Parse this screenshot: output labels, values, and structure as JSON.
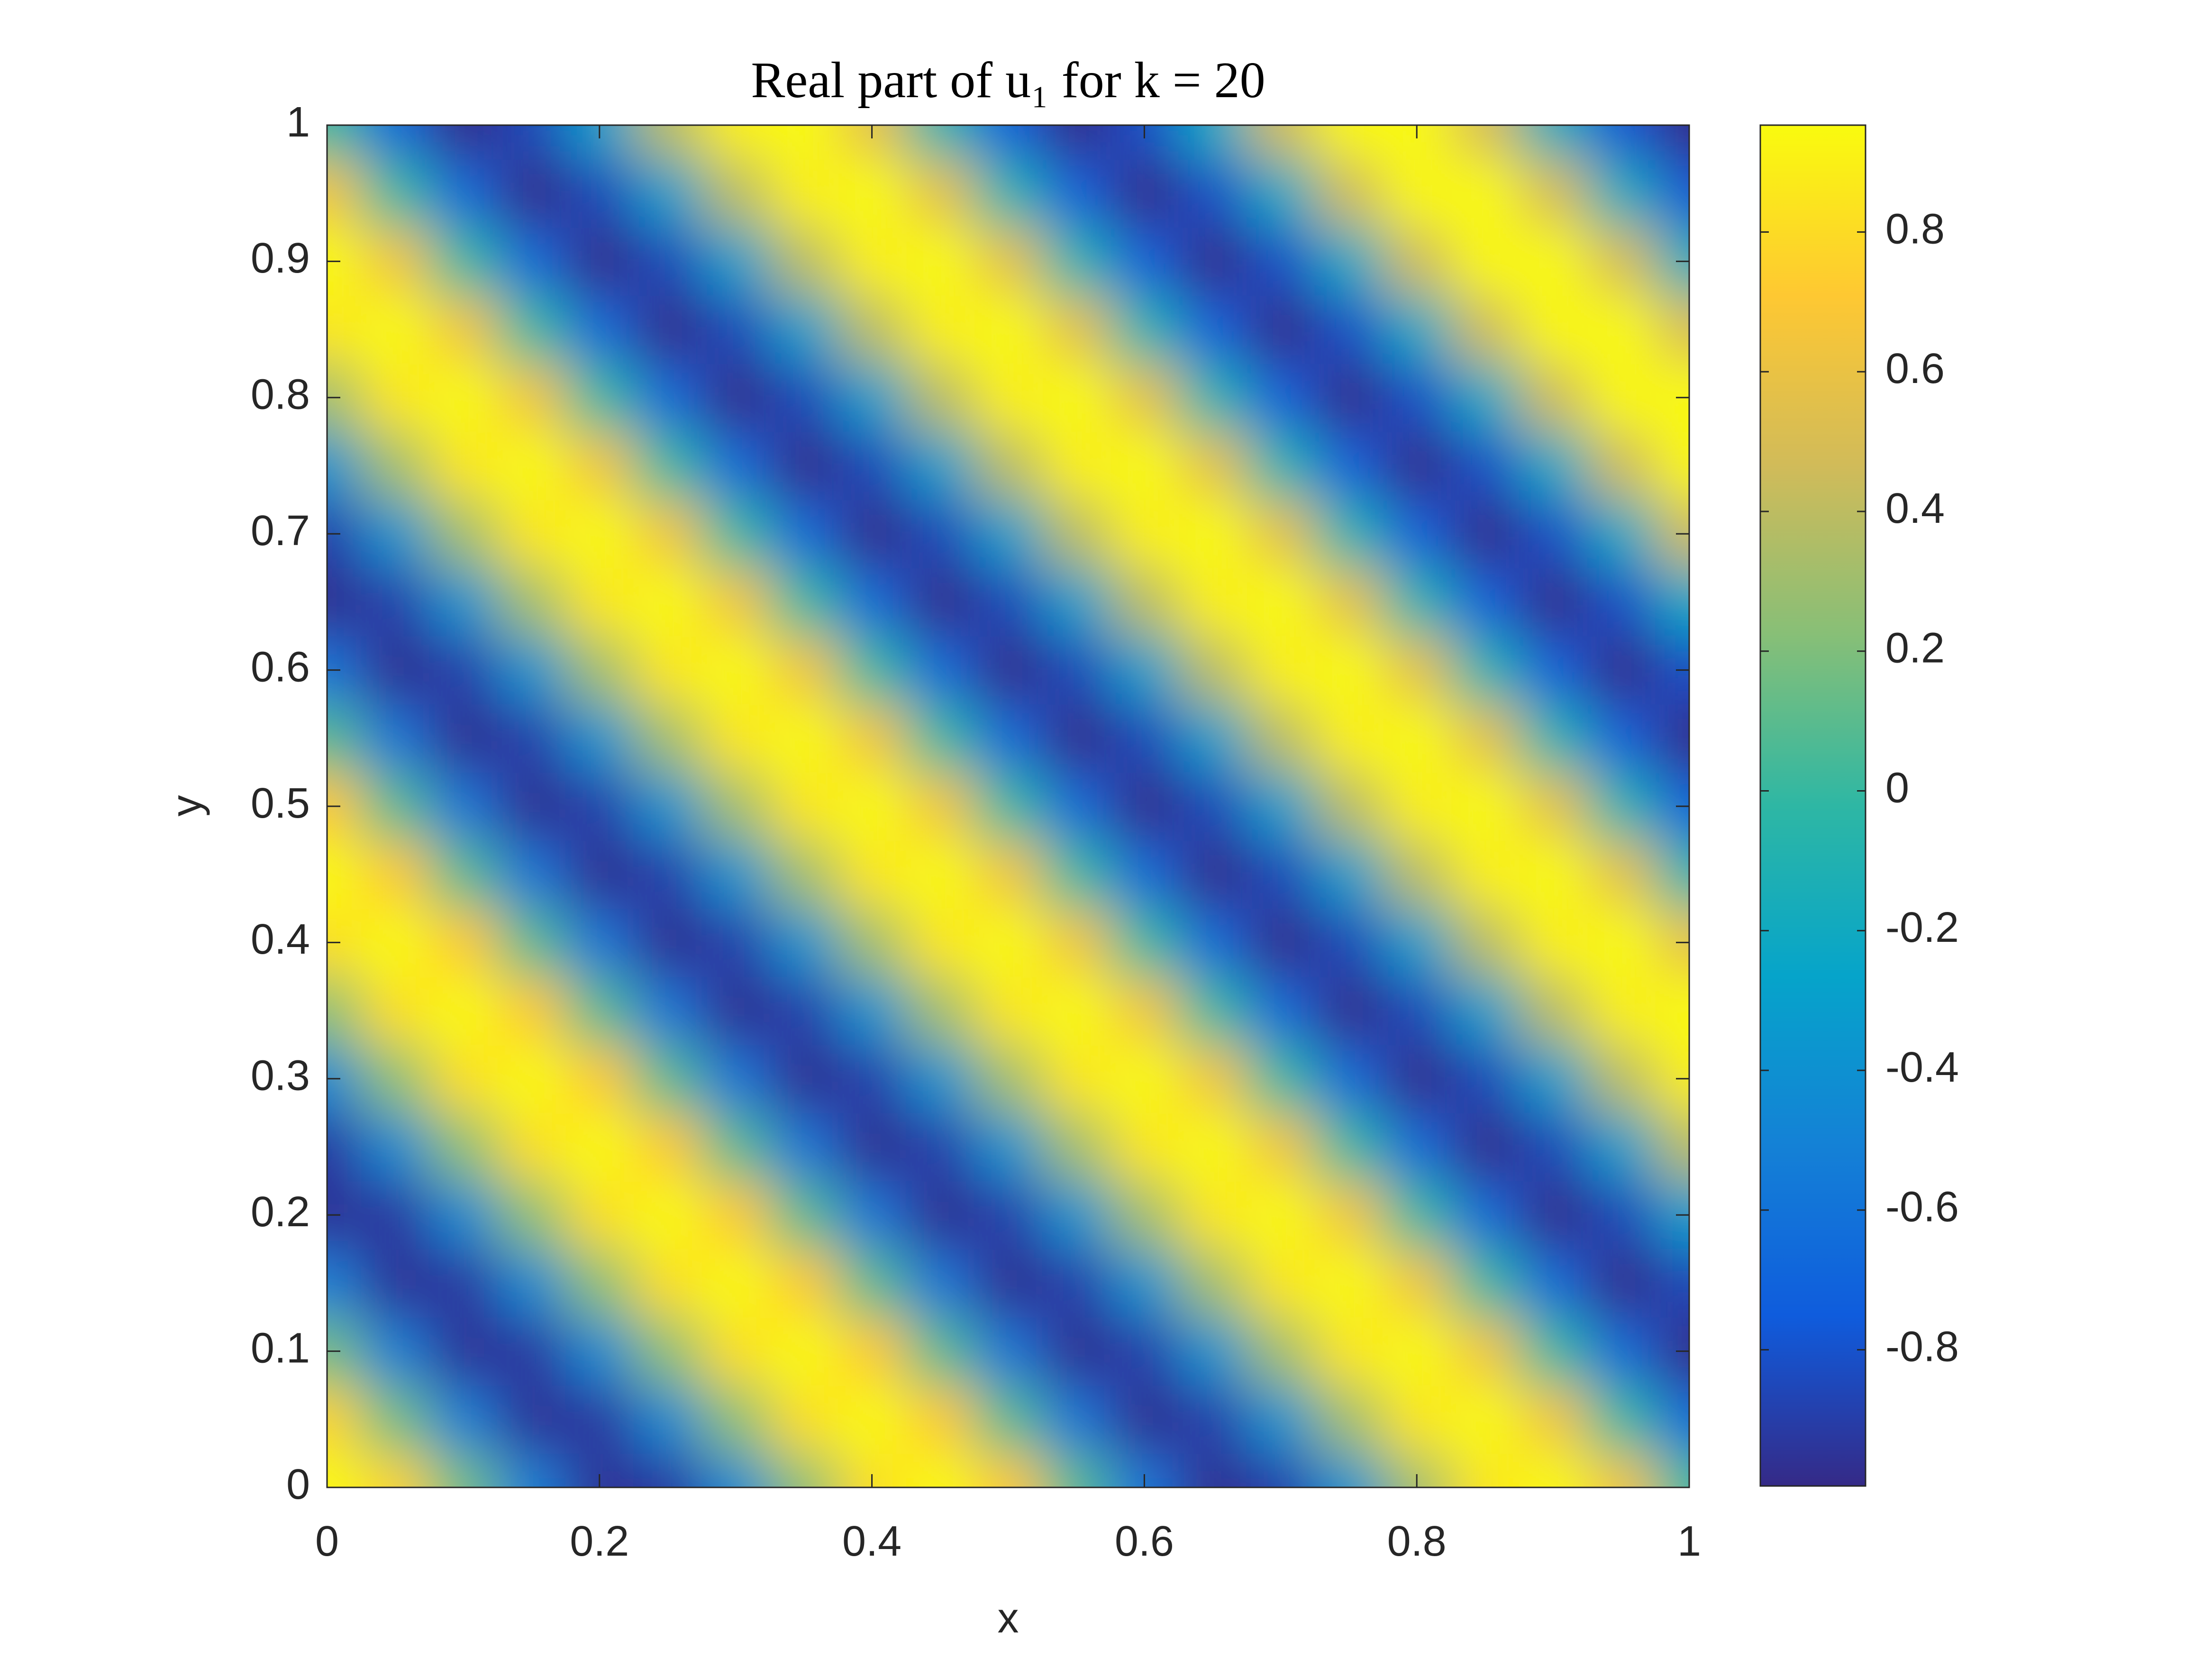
{
  "chart_data": {
    "type": "contourf",
    "title": "Real part of u₁ for k = 20",
    "x_label": "x",
    "y_label": "y",
    "x": [
      0,
      0.05,
      0.1,
      0.15,
      0.2,
      0.25,
      0.3,
      0.35,
      0.4,
      0.45,
      0.5,
      0.55,
      0.6,
      0.65,
      0.7,
      0.75,
      0.8,
      0.85,
      0.9,
      0.95,
      1
    ],
    "y": [
      0,
      0.05,
      0.1,
      0.15,
      0.2,
      0.25,
      0.3,
      0.35,
      0.4,
      0.45,
      0.5,
      0.55,
      0.6,
      0.65,
      0.7,
      0.75,
      0.8,
      0.85,
      0.9,
      0.95,
      1
    ],
    "z": [
      [
        1,
        0.76,
        0.16,
        -0.52,
        -0.95,
        -0.92,
        -0.45,
        0.24,
        0.81,
        1,
        0.71,
        0.08,
        -0.59,
        -0.97,
        -0.89,
        -0.38,
        0.31,
        0.85,
        0.99,
        0.65,
        0
      ],
      [
        0.76,
        0.16,
        -0.52,
        -0.95,
        -0.92,
        -0.45,
        0.24,
        0.81,
        1,
        0.71,
        0.08,
        -0.59,
        -0.97,
        -0.89,
        -0.38,
        0.31,
        0.85,
        0.99,
        0.65,
        0,
        -0.65
      ],
      [
        0.16,
        -0.52,
        -0.95,
        -0.92,
        -0.45,
        0.24,
        0.81,
        1,
        0.71,
        0.08,
        -0.59,
        -0.97,
        -0.89,
        -0.38,
        0.31,
        0.85,
        0.99,
        0.65,
        0,
        -0.65,
        -0.99
      ],
      [
        -0.52,
        -0.95,
        -0.92,
        -0.45,
        0.24,
        0.81,
        1,
        0.71,
        0.08,
        -0.59,
        -0.97,
        -0.89,
        -0.38,
        0.31,
        0.85,
        0.99,
        0.65,
        0,
        -0.65,
        -0.99,
        -0.85
      ],
      [
        -0.95,
        -0.92,
        -0.45,
        0.24,
        0.81,
        1,
        0.71,
        0.08,
        -0.59,
        -0.97,
        -0.89,
        -0.38,
        0.31,
        0.85,
        0.99,
        0.65,
        0,
        -0.65,
        -0.99,
        -0.85,
        -0.31
      ],
      [
        -0.92,
        -0.45,
        0.24,
        0.81,
        1,
        0.71,
        0.08,
        -0.59,
        -0.97,
        -0.89,
        -0.38,
        0.31,
        0.85,
        0.99,
        0.65,
        0,
        -0.65,
        -0.99,
        -0.85,
        -0.31,
        0.39
      ],
      [
        -0.45,
        0.24,
        0.81,
        1,
        0.71,
        0.08,
        -0.59,
        -0.97,
        -0.89,
        -0.38,
        0.31,
        0.85,
        0.99,
        0.65,
        0,
        -0.65,
        -0.99,
        -0.85,
        -0.31,
        0.39,
        0.89
      ],
      [
        0.24,
        0.81,
        1,
        0.71,
        0.08,
        -0.59,
        -0.97,
        -0.89,
        -0.38,
        0.31,
        0.85,
        0.99,
        0.65,
        0,
        -0.65,
        -0.99,
        -0.85,
        -0.31,
        0.39,
        0.89,
        0.97
      ],
      [
        0.81,
        1,
        0.71,
        0.08,
        -0.59,
        -0.97,
        -0.89,
        -0.38,
        0.31,
        0.85,
        0.99,
        0.65,
        0,
        -0.65,
        -0.99,
        -0.85,
        -0.31,
        0.39,
        0.89,
        0.97,
        0.58
      ],
      [
        1,
        0.71,
        0.08,
        -0.59,
        -0.97,
        -0.89,
        -0.38,
        0.31,
        0.85,
        0.99,
        0.65,
        0,
        -0.65,
        -0.99,
        -0.85,
        -0.31,
        0.39,
        0.89,
        0.97,
        0.58,
        -0.09
      ],
      [
        0.71,
        0.08,
        -0.59,
        -0.97,
        -0.89,
        -0.38,
        0.31,
        0.85,
        0.99,
        0.65,
        0,
        -0.65,
        -0.99,
        -0.85,
        -0.31,
        0.39,
        0.89,
        0.97,
        0.58,
        -0.09,
        -0.71
      ],
      [
        0.08,
        -0.59,
        -0.97,
        -0.89,
        -0.38,
        0.31,
        0.85,
        0.99,
        0.65,
        0,
        -0.65,
        -0.99,
        -0.85,
        -0.31,
        0.39,
        0.89,
        0.97,
        0.58,
        -0.09,
        -0.71,
        -1
      ],
      [
        -0.59,
        -0.97,
        -0.89,
        -0.38,
        0.31,
        0.85,
        0.99,
        0.65,
        0,
        -0.65,
        -0.99,
        -0.85,
        -0.31,
        0.39,
        0.89,
        0.97,
        0.58,
        -0.09,
        -0.71,
        -1,
        -0.81
      ],
      [
        -0.97,
        -0.89,
        -0.38,
        0.31,
        0.85,
        0.99,
        0.65,
        0,
        -0.65,
        -0.99,
        -0.85,
        -0.31,
        0.39,
        0.89,
        0.97,
        0.58,
        -0.09,
        -0.71,
        -1,
        -0.81,
        -0.23
      ],
      [
        -0.89,
        -0.38,
        0.31,
        0.85,
        0.99,
        0.65,
        0,
        -0.65,
        -0.99,
        -0.85,
        -0.31,
        0.39,
        0.89,
        0.97,
        0.58,
        -0.09,
        -0.71,
        -1,
        -0.81,
        -0.23,
        0.46
      ],
      [
        -0.38,
        0.31,
        0.85,
        0.99,
        0.65,
        0,
        -0.65,
        -0.99,
        -0.85,
        -0.31,
        0.39,
        0.89,
        0.97,
        0.58,
        -0.09,
        -0.71,
        -1,
        -0.81,
        -0.23,
        0.46,
        0.93
      ],
      [
        0.31,
        0.85,
        0.99,
        0.65,
        0,
        -0.65,
        -0.99,
        -0.85,
        -0.31,
        0.39,
        0.89,
        0.97,
        0.58,
        -0.09,
        -0.71,
        -1,
        -0.81,
        -0.23,
        0.46,
        0.93,
        0.95
      ],
      [
        0.85,
        0.99,
        0.65,
        0,
        -0.65,
        -0.99,
        -0.85,
        -0.31,
        0.39,
        0.89,
        0.97,
        0.58,
        -0.09,
        -0.71,
        -1,
        -0.81,
        -0.23,
        0.46,
        0.93,
        0.95,
        0.51
      ],
      [
        0.99,
        0.65,
        0,
        -0.65,
        -0.99,
        -0.85,
        -0.31,
        0.39,
        0.89,
        0.97,
        0.58,
        -0.09,
        -0.71,
        -1,
        -0.81,
        -0.23,
        0.46,
        0.93,
        0.95,
        0.51,
        -0.17
      ],
      [
        0.65,
        0,
        -0.65,
        -0.99,
        -0.85,
        -0.31,
        0.39,
        0.89,
        0.97,
        0.58,
        -0.09,
        -0.71,
        -1,
        -0.81,
        -0.23,
        0.46,
        0.93,
        0.95,
        0.51,
        -0.17,
        -0.77
      ],
      [
        0,
        -0.65,
        -0.99,
        -0.85,
        -0.31,
        0.39,
        0.89,
        0.97,
        0.58,
        -0.09,
        -0.71,
        -1,
        -0.81,
        -0.23,
        0.46,
        0.93,
        0.95,
        0.51,
        -0.17,
        -0.77,
        -1
      ]
    ],
    "xlim": [
      0,
      1
    ],
    "ylim": [
      0,
      1
    ],
    "xticks": [
      0,
      0.2,
      0.4,
      0.6,
      0.8,
      1
    ],
    "yticks": [
      0,
      0.1,
      0.2,
      0.3,
      0.4,
      0.5,
      0.6,
      0.7,
      0.8,
      0.9,
      1
    ],
    "clim": [
      -0.995,
      0.953
    ],
    "cticks": [
      -0.8,
      -0.6,
      -0.4,
      -0.2,
      0,
      0.2,
      0.4,
      0.6,
      0.8
    ],
    "colormap": [
      "#352a87",
      "#0f5cdd",
      "#1481d6",
      "#06a4ca",
      "#2eb7a4",
      "#87bf77",
      "#d1bb59",
      "#fec832",
      "#f9fb0e"
    ],
    "colorbar": true
  }
}
